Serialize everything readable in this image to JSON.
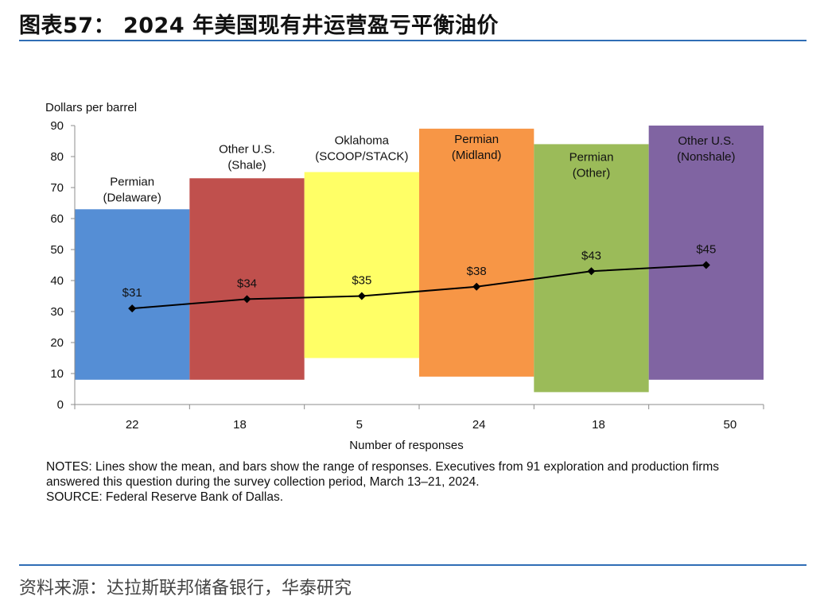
{
  "figure_title": "图表57： 2024 年美国现有井运营盈亏平衡油价",
  "source_line": "资料来源：达拉斯联邦储备银行，华泰研究",
  "notes": {
    "line1": "NOTES: Lines show the mean, and bars show the range of responses. Executives from 91 exploration and production firms",
    "line2": "answered this question during the survey collection period, March 13–21, 2024.",
    "source": "SOURCE: Federal Reserve Bank of Dallas."
  },
  "chart_data": {
    "type": "bar",
    "subtype": "range-bar-with-mean-line",
    "ylabel": "Dollars per barrel",
    "xlabel": "Number of responses",
    "ylim": [
      0,
      90
    ],
    "yticks": [
      0,
      10,
      20,
      30,
      40,
      50,
      60,
      70,
      80,
      90
    ],
    "series": [
      {
        "name": "Permian (Delaware)",
        "label_lines": [
          "Permian",
          "(Delaware)"
        ],
        "responses": "22",
        "low": 8,
        "high": 63,
        "mean": 31,
        "mean_label": "$31",
        "color": "#558ed5"
      },
      {
        "name": "Other U.S. (Shale)",
        "label_lines": [
          "Other U.S.",
          "(Shale)"
        ],
        "responses": "18",
        "low": 8,
        "high": 73,
        "mean": 34,
        "mean_label": "$34",
        "color": "#c0504d"
      },
      {
        "name": "Oklahoma (SCOOP/STACK)",
        "label_lines": [
          "Oklahoma",
          "(SCOOP/STACK)"
        ],
        "responses": "5",
        "low": 15,
        "high": 75,
        "mean": 35,
        "mean_label": "$35",
        "color": "#ffff66"
      },
      {
        "name": "Permian (Midland)",
        "label_lines": [
          "Permian",
          "(Midland)"
        ],
        "responses": "24",
        "low": 9,
        "high": 89,
        "mean": 38,
        "mean_label": "$38",
        "color": "#f79646"
      },
      {
        "name": "Permian (Other)",
        "label_lines": [
          "Permian",
          "(Other)"
        ],
        "responses": "18",
        "low": 4,
        "high": 84,
        "mean": 43,
        "mean_label": "$43",
        "color": "#9bbb59"
      },
      {
        "name": "Other U.S. (Nonshale)",
        "label_lines": [
          "Other U.S.",
          "(Nonshale)"
        ],
        "responses": "50",
        "low": 8,
        "high": 90,
        "mean": 45,
        "mean_label": "$45",
        "color": "#8064a2"
      }
    ]
  }
}
